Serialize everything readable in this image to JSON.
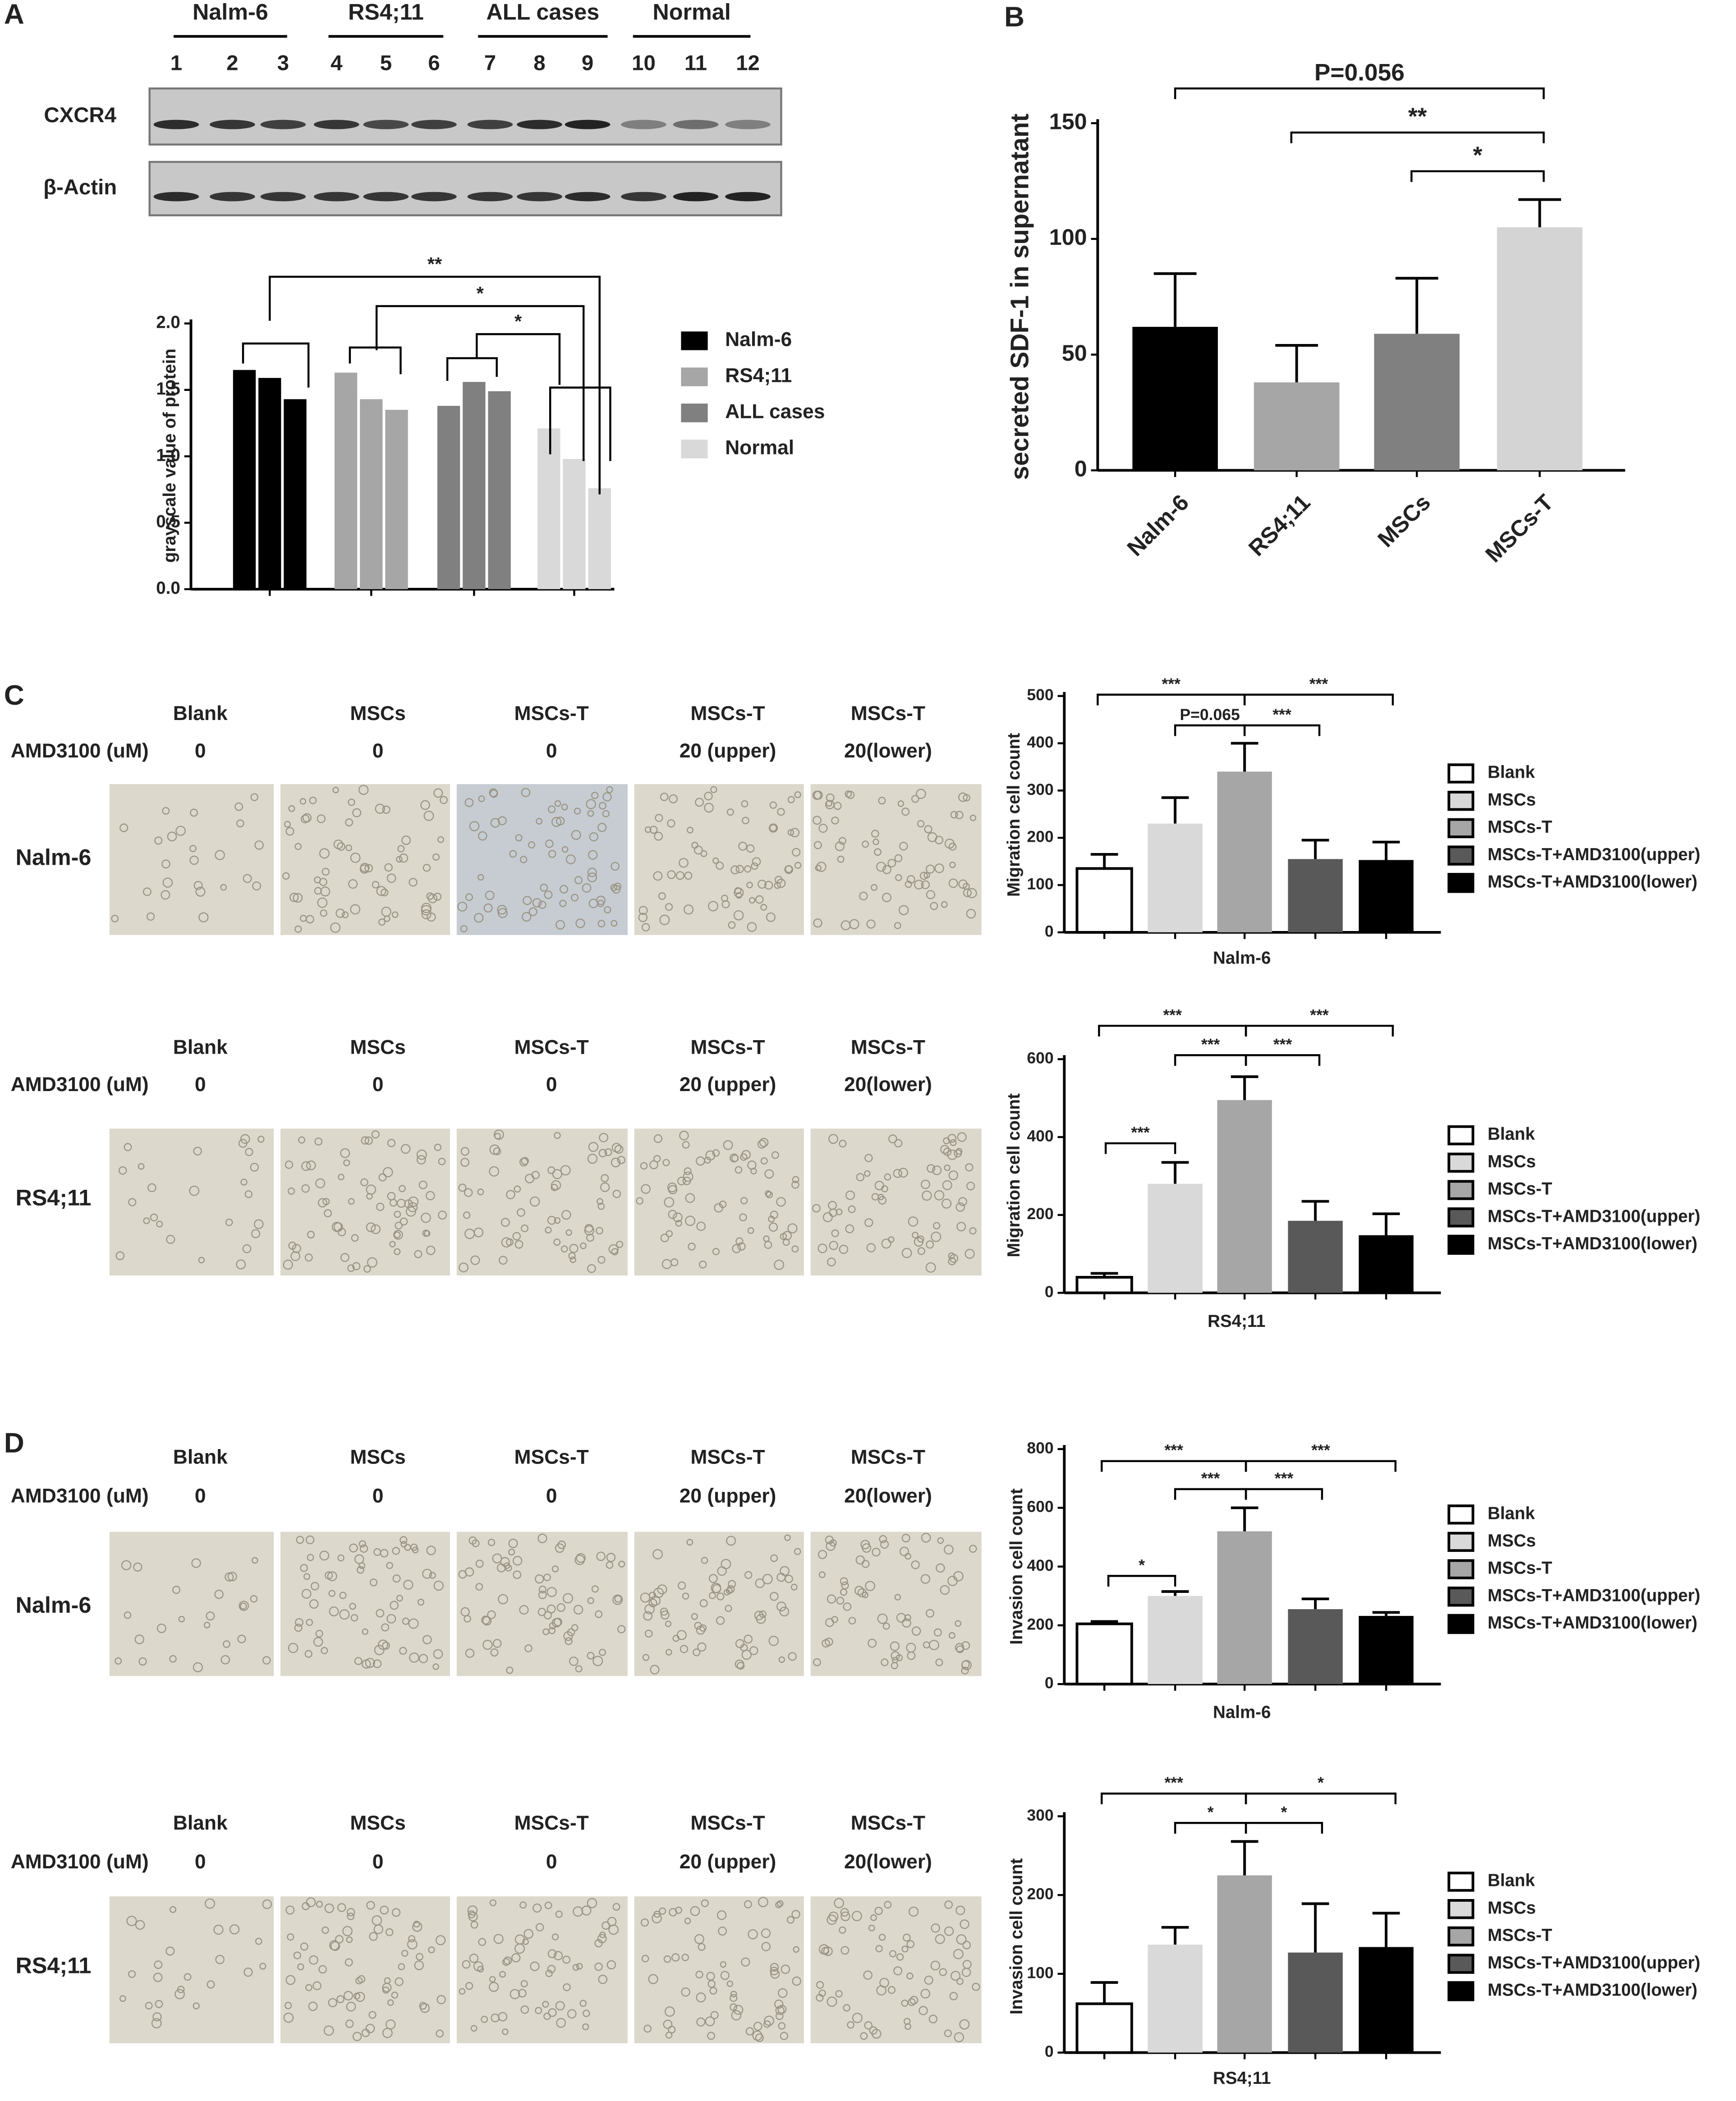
{
  "panel_labels": [
    "A",
    "B",
    "C",
    "D"
  ],
  "blot": {
    "groups": [
      "Nalm-6",
      "RS4;11",
      "ALL cases",
      "Normal"
    ],
    "lanes": [
      1,
      2,
      3,
      4,
      5,
      6,
      7,
      8,
      9,
      10,
      11,
      12
    ],
    "rows": [
      "CXCR4",
      "β-Actin"
    ]
  },
  "micrographs": [
    {
      "conditions": [
        "Blank",
        "MSCs",
        "MSCs-T",
        "MSCs-T",
        "MSCs-T"
      ],
      "dose_label": "AMD3100 (uM)",
      "doses": [
        "0",
        "0",
        "0",
        "20 (upper)",
        "20(lower)"
      ],
      "cell_line": "Nalm-6"
    },
    {
      "conditions": [
        "Blank",
        "MSCs",
        "MSCs-T",
        "MSCs-T",
        "MSCs-T"
      ],
      "dose_label": "AMD3100 (uM)",
      "doses": [
        "0",
        "0",
        "0",
        "20 (upper)",
        "20(lower)"
      ],
      "cell_line": "RS4;11"
    },
    {
      "conditions": [
        "Blank",
        "MSCs",
        "MSCs-T",
        "MSCs-T",
        "MSCs-T"
      ],
      "dose_label": "AMD3100 (uM)",
      "doses": [
        "0",
        "0",
        "0",
        "20 (upper)",
        "20(lower)"
      ],
      "cell_line": "Nalm-6"
    },
    {
      "conditions": [
        "Blank",
        "MSCs",
        "MSCs-T",
        "MSCs-T",
        "MSCs-T"
      ],
      "dose_label": "AMD3100 (uM)",
      "doses": [
        "0",
        "0",
        "0",
        "20 (upper)",
        "20(lower)"
      ],
      "cell_line": "RS4;11"
    }
  ],
  "chart_data": [
    {
      "type": "bar",
      "y_label": "grayscale value of protein",
      "series": [
        {
          "name": "Nalm-6",
          "color": "#000000",
          "values": [
            1.65,
            1.59,
            1.43
          ]
        },
        {
          "name": "RS4;11",
          "color": "#a6a6a6",
          "values": [
            1.63,
            1.43,
            1.35
          ]
        },
        {
          "name": "ALL cases",
          "color": "#808080",
          "values": [
            1.38,
            1.56,
            1.49
          ]
        },
        {
          "name": "Normal",
          "color": "#d9d9d9",
          "values": [
            1.21,
            0.98,
            0.76
          ]
        }
      ],
      "ylim": [
        0,
        2.0
      ],
      "yticks": [
        {
          "value": 0,
          "label": "0.0"
        },
        {
          "value": 0.5,
          "label": "0.5"
        },
        {
          "value": 1,
          "label": "1.0"
        },
        {
          "value": 1.5,
          "label": "1.5"
        },
        {
          "value": 2,
          "label": "2.0"
        }
      ],
      "annotations": [
        "**",
        "*",
        "*"
      ]
    },
    {
      "type": "bar",
      "y_label": "secreted SDF-1 in supernatant",
      "categories": [
        "Nalm-6",
        "RS4;11",
        "MSCs",
        "MSCs-T"
      ],
      "colors": [
        "#000000",
        "#a6a6a6",
        "#808080",
        "#d4d4d4"
      ],
      "values": [
        62,
        38,
        59,
        105
      ],
      "errors": [
        23,
        16,
        24,
        12
      ],
      "ylim": [
        0,
        150
      ],
      "yticks": [
        0,
        50,
        100,
        150
      ],
      "annotations": [
        "P=0.056",
        "**",
        "*"
      ]
    },
    {
      "type": "bar",
      "y_label": "Migration cell count",
      "x_label": "Nalm-6",
      "categories": [
        "Blank",
        "MSCs",
        "MSCs-T",
        "MSCs-T+AMD3100(upper)",
        "MSCs-T+AMD3100(lower)"
      ],
      "colors": [
        "#ffffff",
        "#d9d9d9",
        "#a6a6a6",
        "#595959",
        "#000000"
      ],
      "values": [
        135,
        230,
        340,
        155,
        153
      ],
      "errors": [
        30,
        55,
        60,
        40,
        38
      ],
      "ylim": [
        0,
        500
      ],
      "yticks": [
        0,
        100,
        200,
        300,
        400,
        500
      ],
      "annotations": [
        "***",
        "P=0.065",
        "***",
        "***"
      ]
    },
    {
      "type": "bar",
      "y_label": "Migration cell count",
      "x_label": "RS4;11",
      "categories": [
        "Blank",
        "MSCs",
        "MSCs-T",
        "MSCs-T+AMD3100(upper)",
        "MSCs-T+AMD3100(lower)"
      ],
      "colors": [
        "#ffffff",
        "#d9d9d9",
        "#a6a6a6",
        "#595959",
        "#000000"
      ],
      "values": [
        40,
        280,
        495,
        185,
        148
      ],
      "errors": [
        10,
        55,
        60,
        50,
        55
      ],
      "ylim": [
        0,
        600
      ],
      "yticks": [
        0,
        200,
        400,
        600
      ],
      "annotations": [
        "***",
        "***",
        "***",
        "***",
        "***"
      ]
    },
    {
      "type": "bar",
      "y_label": "Invasion cell count",
      "x_label": "Nalm-6",
      "categories": [
        "Blank",
        "MSCs",
        "MSCs-T",
        "MSCs-T+AMD3100(upper)",
        "MSCs-T+AMD3100(lower)"
      ],
      "colors": [
        "#ffffff",
        "#d9d9d9",
        "#a6a6a6",
        "#595959",
        "#000000"
      ],
      "values": [
        205,
        300,
        520,
        255,
        232
      ],
      "errors": [
        8,
        15,
        80,
        35,
        12
      ],
      "ylim": [
        0,
        800
      ],
      "yticks": [
        0,
        200,
        400,
        600,
        800
      ],
      "annotations": [
        "***",
        "***",
        "***",
        "***",
        "*"
      ]
    },
    {
      "type": "bar",
      "y_label": "Invasion cell count",
      "x_label": "RS4;11",
      "categories": [
        "Blank",
        "MSCs",
        "MSCs-T",
        "MSCs-T+AMD3100(upper)",
        "MSCs-T+AMD3100(lower)"
      ],
      "colors": [
        "#ffffff",
        "#d9d9d9",
        "#a6a6a6",
        "#595959",
        "#000000"
      ],
      "values": [
        62,
        137,
        225,
        127,
        134
      ],
      "errors": [
        27,
        22,
        43,
        62,
        43
      ],
      "ylim": [
        0,
        300
      ],
      "yticks": [
        0,
        100,
        200,
        300
      ],
      "annotations": [
        "***",
        "*",
        "*",
        "*"
      ]
    }
  ]
}
